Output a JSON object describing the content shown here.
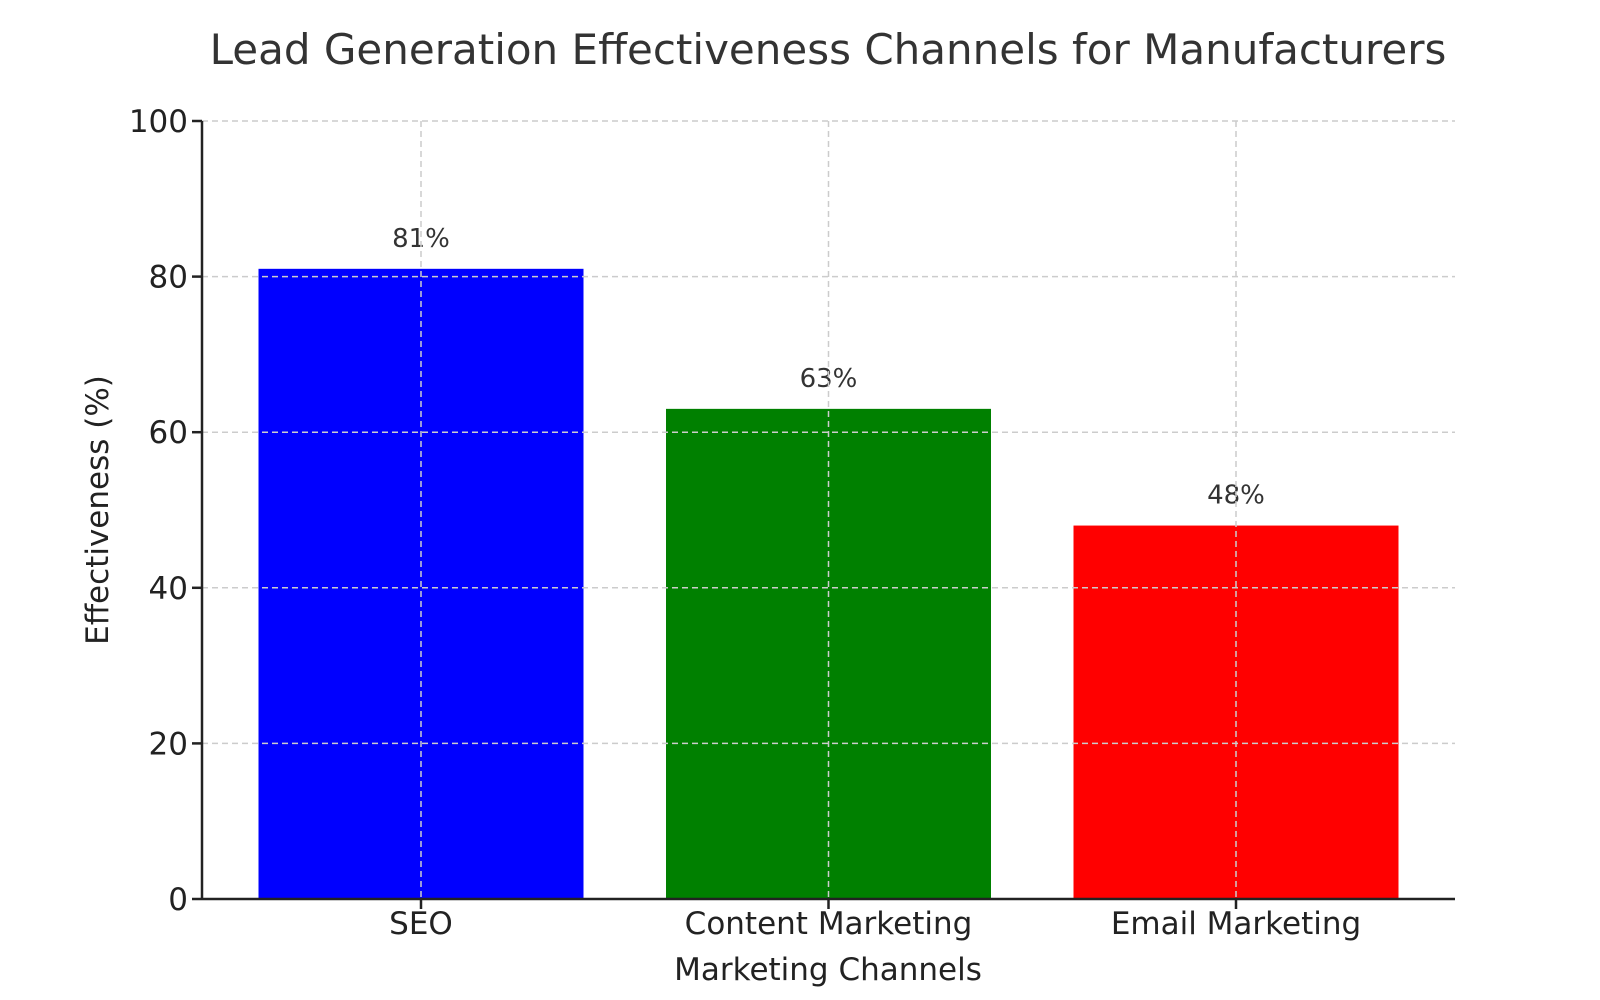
{
  "chart_data": {
    "type": "bar",
    "title": "Lead Generation Effectiveness Channels for Manufacturers",
    "xlabel": "Marketing Channels",
    "ylabel": "Effectiveness (%)",
    "categories": [
      "SEO",
      "Content Marketing",
      "Email Marketing"
    ],
    "values": [
      81,
      63,
      48
    ],
    "data_labels": [
      "81%",
      "63%",
      "48%"
    ],
    "colors": [
      "#0000ff",
      "#008000",
      "#ff0000"
    ],
    "ylim": [
      0,
      100
    ],
    "yticks": [
      "0",
      "20",
      "40",
      "60",
      "80",
      "100"
    ],
    "grid": true
  }
}
